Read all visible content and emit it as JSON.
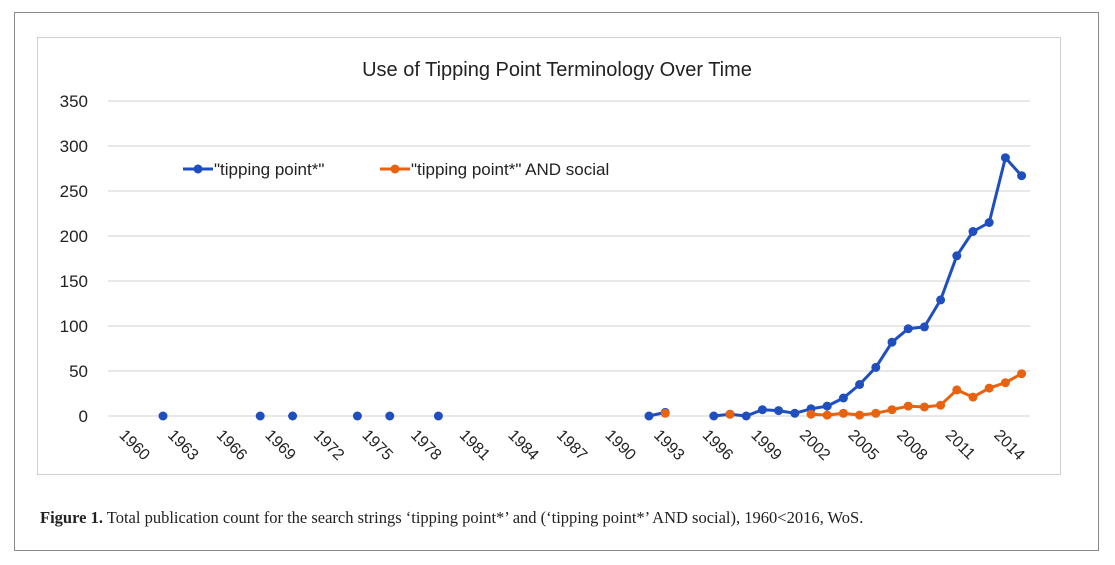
{
  "chart_data": {
    "type": "line",
    "title": "Use of Tipping Point Terminology Over Time",
    "xlabel": "",
    "ylabel": "",
    "ylim": [
      0,
      350
    ],
    "yticks": [
      0,
      50,
      100,
      150,
      200,
      250,
      300,
      350
    ],
    "x_start": 1960,
    "x_end": 2016,
    "xtick_labels": [
      "1960",
      "1963",
      "1966",
      "1969",
      "1972",
      "1975",
      "1978",
      "1981",
      "1984",
      "1987",
      "1990",
      "1993",
      "1996",
      "1999",
      "2002",
      "2005",
      "2008",
      "2011",
      "2014"
    ],
    "grid": true,
    "legend_position": "top-left",
    "series": [
      {
        "name": "\"tipping point*\"",
        "color": "#1f4fbf",
        "points": [
          [
            1963,
            0
          ],
          [
            1969,
            0
          ],
          [
            1971,
            0
          ],
          [
            1975,
            0
          ],
          [
            1977,
            0
          ],
          [
            1980,
            0
          ],
          [
            1993,
            0
          ],
          [
            1994,
            4
          ],
          [
            1997,
            0
          ],
          [
            1998,
            2
          ],
          [
            1999,
            0
          ],
          [
            2000,
            7
          ],
          [
            2001,
            6
          ],
          [
            2002,
            3
          ],
          [
            2003,
            8
          ],
          [
            2004,
            11
          ],
          [
            2005,
            20
          ],
          [
            2006,
            35
          ],
          [
            2007,
            54
          ],
          [
            2008,
            82
          ],
          [
            2009,
            97
          ],
          [
            2010,
            99
          ],
          [
            2011,
            129
          ],
          [
            2012,
            178
          ],
          [
            2013,
            205
          ],
          [
            2014,
            215
          ],
          [
            2015,
            287
          ],
          [
            2016,
            267
          ]
        ]
      },
      {
        "name": "\"tipping point*\" AND social",
        "color": "#e8620f",
        "points": [
          [
            1994,
            3
          ],
          [
            1998,
            2
          ],
          [
            2003,
            2
          ],
          [
            2004,
            1
          ],
          [
            2005,
            3
          ],
          [
            2006,
            1
          ],
          [
            2007,
            3
          ],
          [
            2008,
            7
          ],
          [
            2009,
            11
          ],
          [
            2010,
            10
          ],
          [
            2011,
            12
          ],
          [
            2012,
            29
          ],
          [
            2013,
            21
          ],
          [
            2014,
            31
          ],
          [
            2015,
            37
          ],
          [
            2016,
            47
          ]
        ]
      }
    ]
  },
  "caption": {
    "label": "Figure 1.",
    "text": " Total publication count for the search strings ‘tipping point*’ and (‘tipping point*’ AND social), 1960<2016, WoS."
  }
}
